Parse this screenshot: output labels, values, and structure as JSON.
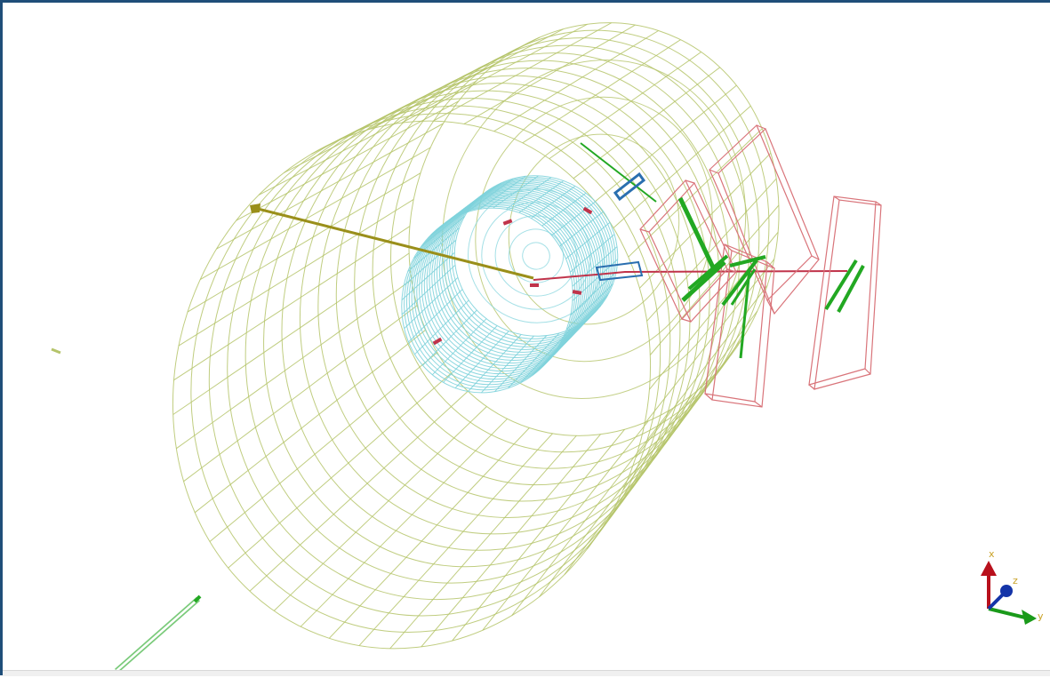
{
  "viewer": {
    "colors": {
      "outer_mesh": "#b5c46a",
      "inner_mesh": "#7fd3dc",
      "module_box": "#d9747a",
      "green_strip": "#22a822",
      "olive_track": "#9a8f1a",
      "red_track": "#c0334a",
      "blue_part": "#2a6fb0",
      "frame_border": "#1f4e79"
    },
    "axes": {
      "x_label": "x",
      "y_label": "y",
      "z_label": "z",
      "x_color": "#b8101c",
      "y_color": "#1a9a1a",
      "z_color": "#1434a8",
      "label_color": "#c9a227"
    }
  }
}
